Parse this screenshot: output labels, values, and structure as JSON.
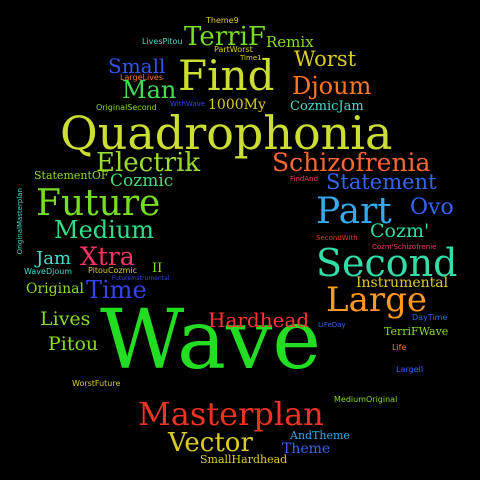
{
  "words": [
    {
      "text": "Wave",
      "color": "#22dd22"
    },
    {
      "text": "Quadrophonia",
      "color": "#ccdd33"
    },
    {
      "text": "Find",
      "color": "#ccdd33"
    },
    {
      "text": "Masterplan",
      "color": "#ee3322"
    },
    {
      "text": "Second",
      "color": "#33ddaa"
    },
    {
      "text": "Large",
      "color": "#ff9922"
    },
    {
      "text": "Future",
      "color": "#77dd22"
    },
    {
      "text": "Part",
      "color": "#33aaee"
    },
    {
      "text": "Schizofrenia",
      "color": "#ff6633"
    },
    {
      "text": "Electrik",
      "color": "#99dd33"
    },
    {
      "text": "Vector",
      "color": "#ddcc22"
    },
    {
      "text": "Medium",
      "color": "#33dd88"
    },
    {
      "text": "Xtra",
      "color": "#ff3366"
    },
    {
      "text": "Time",
      "color": "#3344ee"
    },
    {
      "text": "Statement",
      "color": "#3366ee"
    },
    {
      "text": "Hardhead",
      "color": "#ff3333"
    },
    {
      "text": "Djoum",
      "color": "#ff7722"
    },
    {
      "text": "Worst",
      "color": "#ddcc22"
    },
    {
      "text": "Man",
      "color": "#44dd55"
    },
    {
      "text": "TerriF",
      "color": "#77dd22"
    },
    {
      "text": "Cozm'",
      "color": "#33ddaa"
    },
    {
      "text": "Ovo",
      "color": "#3366ff"
    },
    {
      "text": "Cozmic",
      "color": "#44dd77"
    },
    {
      "text": "Small",
      "color": "#3355ee"
    },
    {
      "text": "Pitou",
      "color": "#88dd22"
    },
    {
      "text": "Lives",
      "color": "#88dd22"
    },
    {
      "text": "Jam",
      "color": "#44ddcc"
    },
    {
      "text": "Instrumental",
      "color": "#ddcc22"
    },
    {
      "text": "Original",
      "color": "#88dd22"
    },
    {
      "text": "Remix",
      "color": "#88dd22"
    },
    {
      "text": "1000My",
      "color": "#ddcc22"
    },
    {
      "text": "CozmicJam",
      "color": "#44ddcc"
    },
    {
      "text": "Theme",
      "color": "#3366ee"
    },
    {
      "text": "AndTheme",
      "color": "#33aaee"
    },
    {
      "text": "SmallHardhead",
      "color": "#ddcc22"
    },
    {
      "text": "TerriFWave",
      "color": "#88dd22"
    },
    {
      "text": "StatementOF",
      "color": "#88dd22"
    },
    {
      "text": "II",
      "color": "#88dd22"
    },
    {
      "text": "OriginalSecond",
      "color": "#88dd22"
    },
    {
      "text": "Theme9",
      "color": "#ddcc22"
    },
    {
      "text": "LivesPitou",
      "color": "#44ddcc"
    },
    {
      "text": "PartWorst",
      "color": "#ddcc22"
    },
    {
      "text": "Time1",
      "color": "#ddcc22"
    },
    {
      "text": "LargeLives",
      "color": "#ff7722"
    },
    {
      "text": "WaveDjoum",
      "color": "#44ddcc"
    },
    {
      "text": "PitouCozmic",
      "color": "#ddcc22"
    },
    {
      "text": "LiFeDay",
      "color": "#3366ee"
    },
    {
      "text": "DayTime",
      "color": "#3366ee"
    },
    {
      "text": "Life",
      "color": "#ff7722"
    },
    {
      "text": "LargeII",
      "color": "#3366ee"
    },
    {
      "text": "MediumOriginal",
      "color": "#88dd22"
    },
    {
      "text": "WorstFuture",
      "color": "#ddcc22"
    },
    {
      "text": "FindAnd",
      "color": "#ff3366"
    },
    {
      "text": "SecondWith",
      "color": "#ee3322"
    },
    {
      "text": "Cozm'Schizofrenie",
      "color": "#ff3366"
    },
    {
      "text": "OriginalMasterplan",
      "color": "#44ddcc"
    },
    {
      "text": "WithWave",
      "color": "#3344ee"
    },
    {
      "text": "FutureInstrumental",
      "color": "#3344ee"
    }
  ]
}
